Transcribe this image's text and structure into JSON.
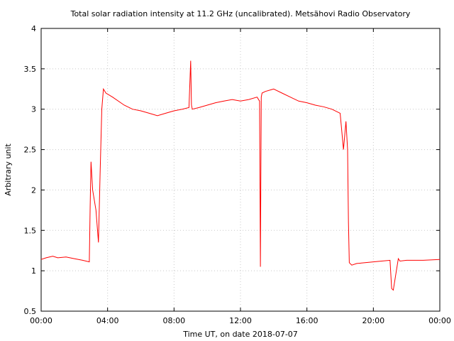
{
  "chart_data": {
    "type": "line",
    "title": "Total solar radiation intensity at 11.2 GHz (uncalibrated). Metsähovi Radio Observatory",
    "xlabel": "Time UT, on date 2018-07-07",
    "ylabel": "Arbitrary unit",
    "xlim_hours": [
      0,
      24
    ],
    "ylim": [
      0.5,
      4
    ],
    "x_ticks": [
      "00:00",
      "04:00",
      "08:00",
      "12:00",
      "16:00",
      "20:00",
      "00:00"
    ],
    "y_ticks": [
      "0.5",
      "1",
      "1.5",
      "2",
      "2.5",
      "3",
      "3.5",
      "4"
    ],
    "grid": true,
    "line_color": "#ff0000",
    "series": [
      {
        "x_hours": [
          0.0,
          0.3,
          0.7,
          1.0,
          1.5,
          2.0,
          2.5,
          2.9,
          2.95,
          3.0,
          3.1,
          3.3,
          3.45,
          3.55,
          3.65,
          3.75,
          3.9,
          4.3,
          5.0,
          5.5,
          6.0,
          6.5,
          7.0,
          7.5,
          8.0,
          8.5,
          8.9,
          9.0,
          9.05,
          9.1,
          9.5,
          10.0,
          10.5,
          11.0,
          11.5,
          12.0,
          12.5,
          13.0,
          13.15,
          13.2,
          13.25,
          13.3,
          13.5,
          14.0,
          14.5,
          15.0,
          15.5,
          16.0,
          16.5,
          17.0,
          17.5,
          18.0,
          18.2,
          18.35,
          18.45,
          18.5,
          18.55,
          18.7,
          19.0,
          19.5,
          20.0,
          20.5,
          21.0,
          21.1,
          21.2,
          21.5,
          21.6,
          22.0,
          22.5,
          23.0,
          24.0
        ],
        "y": [
          1.14,
          1.16,
          1.18,
          1.16,
          1.17,
          1.15,
          1.13,
          1.11,
          1.8,
          2.35,
          2.0,
          1.75,
          1.35,
          2.2,
          3.0,
          3.25,
          3.2,
          3.15,
          3.05,
          3.0,
          2.98,
          2.95,
          2.92,
          2.95,
          2.98,
          3.0,
          3.02,
          3.6,
          3.05,
          3.0,
          3.02,
          3.05,
          3.08,
          3.1,
          3.12,
          3.1,
          3.12,
          3.15,
          3.1,
          1.05,
          3.15,
          3.2,
          3.22,
          3.25,
          3.2,
          3.15,
          3.1,
          3.08,
          3.05,
          3.03,
          3.0,
          2.95,
          2.5,
          2.85,
          2.5,
          1.6,
          1.1,
          1.07,
          1.09,
          1.1,
          1.11,
          1.12,
          1.13,
          0.78,
          0.76,
          1.15,
          1.12,
          1.13,
          1.13,
          1.13,
          1.14
        ]
      }
    ]
  }
}
